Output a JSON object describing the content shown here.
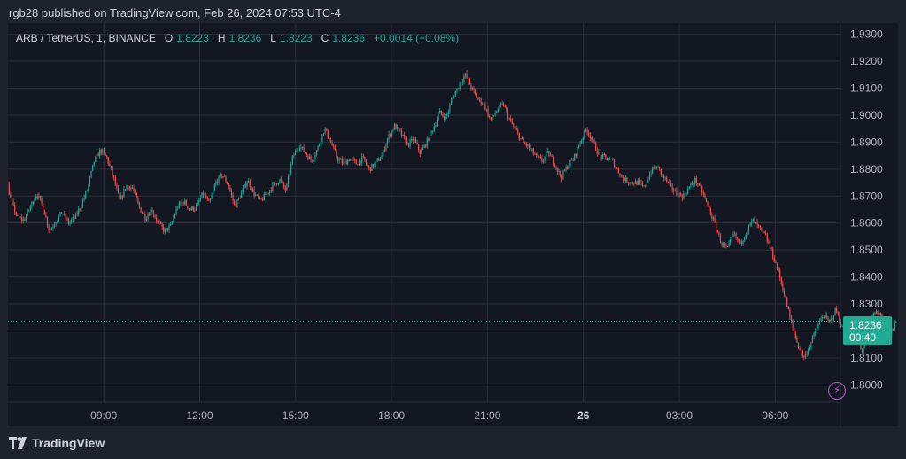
{
  "header": {
    "publisher_line": "rgb28 published on TradingView.com, Feb 26, 2024 07:53 UTC-4"
  },
  "legend": {
    "symbol": "ARB / TetherUS, 1, BINANCE",
    "o_label": "O",
    "o_value": "1.8223",
    "h_label": "H",
    "h_value": "1.8236",
    "l_label": "L",
    "l_value": "1.8223",
    "c_label": "C",
    "c_value": "1.8236",
    "change": "+0.0014 (+0.08%)"
  },
  "price_badge": {
    "price": "1.8236",
    "countdown": "00:40"
  },
  "footer": {
    "brand": "TradingView"
  },
  "colors": {
    "up": "#26a69a",
    "down": "#ef5350",
    "background": "#131722",
    "grid": "#2a2e39",
    "axis_text": "#b2b5be"
  },
  "chart_data": {
    "type": "candlestick",
    "interval": "1 minute",
    "ylim": [
      1.7975,
      1.9325
    ],
    "y_ticks": [
      "1.9300",
      "1.9200",
      "1.9100",
      "1.9000",
      "1.8900",
      "1.8800",
      "1.8700",
      "1.8600",
      "1.8500",
      "1.8400",
      "1.8300",
      "1.8200",
      "1.8100",
      "1.8000"
    ],
    "x_ticks": [
      {
        "label": "09:00",
        "hours": 2
      },
      {
        "label": "12:00",
        "hours": 5
      },
      {
        "label": "15:00",
        "hours": 8
      },
      {
        "label": "18:00",
        "hours": 11
      },
      {
        "label": "21:00",
        "hours": 14
      },
      {
        "label": "26",
        "hours": 17,
        "bold": true
      },
      {
        "label": "03:00",
        "hours": 20
      },
      {
        "label": "06:00",
        "hours": 23
      }
    ],
    "last_price": 1.8236,
    "grid": true,
    "price_path": [
      [
        -3.0,
        1.853
      ],
      [
        -2.85,
        1.855
      ],
      [
        -2.7,
        1.851
      ],
      [
        -2.5,
        1.849
      ],
      [
        -2.3,
        1.852
      ],
      [
        -2.1,
        1.849
      ],
      [
        -1.9,
        1.853
      ],
      [
        -1.7,
        1.857
      ],
      [
        -1.5,
        1.866
      ],
      [
        -1.3,
        1.876
      ],
      [
        -1.1,
        1.879
      ],
      [
        -0.9,
        1.868
      ],
      [
        -0.7,
        1.862
      ],
      [
        -0.5,
        1.861
      ],
      [
        -0.3,
        1.866
      ],
      [
        -0.1,
        1.871
      ],
      [
        0.1,
        1.866
      ],
      [
        0.3,
        1.857
      ],
      [
        0.5,
        1.861
      ],
      [
        0.7,
        1.864
      ],
      [
        0.9,
        1.86
      ],
      [
        1.1,
        1.862
      ],
      [
        1.3,
        1.867
      ],
      [
        1.5,
        1.873
      ],
      [
        1.7,
        1.883
      ],
      [
        1.9,
        1.887
      ],
      [
        2.1,
        1.884
      ],
      [
        2.3,
        1.877
      ],
      [
        2.5,
        1.868
      ],
      [
        2.7,
        1.874
      ],
      [
        2.9,
        1.873
      ],
      [
        3.1,
        1.866
      ],
      [
        3.3,
        1.862
      ],
      [
        3.5,
        1.865
      ],
      [
        3.7,
        1.86
      ],
      [
        3.9,
        1.857
      ],
      [
        4.1,
        1.859
      ],
      [
        4.3,
        1.866
      ],
      [
        4.5,
        1.868
      ],
      [
        4.7,
        1.865
      ],
      [
        4.9,
        1.866
      ],
      [
        5.1,
        1.871
      ],
      [
        5.3,
        1.867
      ],
      [
        5.5,
        1.875
      ],
      [
        5.7,
        1.878
      ],
      [
        5.9,
        1.874
      ],
      [
        6.1,
        1.866
      ],
      [
        6.3,
        1.871
      ],
      [
        6.5,
        1.876
      ],
      [
        6.7,
        1.871
      ],
      [
        6.9,
        1.868
      ],
      [
        7.1,
        1.871
      ],
      [
        7.3,
        1.874
      ],
      [
        7.5,
        1.876
      ],
      [
        7.7,
        1.872
      ],
      [
        7.9,
        1.884
      ],
      [
        8.1,
        1.889
      ],
      [
        8.3,
        1.886
      ],
      [
        8.5,
        1.883
      ],
      [
        8.7,
        1.888
      ],
      [
        8.9,
        1.895
      ],
      [
        9.1,
        1.89
      ],
      [
        9.3,
        1.884
      ],
      [
        9.5,
        1.882
      ],
      [
        9.7,
        1.884
      ],
      [
        9.9,
        1.882
      ],
      [
        10.1,
        1.884
      ],
      [
        10.3,
        1.88
      ],
      [
        10.5,
        1.882
      ],
      [
        10.7,
        1.885
      ],
      [
        10.9,
        1.892
      ],
      [
        11.1,
        1.896
      ],
      [
        11.3,
        1.893
      ],
      [
        11.5,
        1.889
      ],
      [
        11.7,
        1.891
      ],
      [
        11.9,
        1.886
      ],
      [
        12.1,
        1.89
      ],
      [
        12.3,
        1.895
      ],
      [
        12.5,
        1.901
      ],
      [
        12.7,
        1.899
      ],
      [
        12.9,
        1.906
      ],
      [
        13.1,
        1.911
      ],
      [
        13.3,
        1.915
      ],
      [
        13.5,
        1.91
      ],
      [
        13.7,
        1.906
      ],
      [
        13.9,
        1.904
      ],
      [
        14.1,
        1.898
      ],
      [
        14.3,
        1.902
      ],
      [
        14.5,
        1.904
      ],
      [
        14.7,
        1.898
      ],
      [
        14.9,
        1.894
      ],
      [
        15.1,
        1.89
      ],
      [
        15.3,
        1.888
      ],
      [
        15.5,
        1.885
      ],
      [
        15.7,
        1.883
      ],
      [
        15.9,
        1.886
      ],
      [
        16.1,
        1.882
      ],
      [
        16.3,
        1.877
      ],
      [
        16.5,
        1.881
      ],
      [
        16.7,
        1.884
      ],
      [
        16.9,
        1.89
      ],
      [
        17.1,
        1.895
      ],
      [
        17.3,
        1.89
      ],
      [
        17.5,
        1.885
      ],
      [
        17.7,
        1.884
      ],
      [
        17.9,
        1.883
      ],
      [
        18.1,
        1.879
      ],
      [
        18.3,
        1.876
      ],
      [
        18.5,
        1.875
      ],
      [
        18.7,
        1.875
      ],
      [
        18.9,
        1.873
      ],
      [
        19.1,
        1.879
      ],
      [
        19.3,
        1.881
      ],
      [
        19.5,
        1.877
      ],
      [
        19.7,
        1.874
      ],
      [
        19.9,
        1.871
      ],
      [
        20.1,
        1.87
      ],
      [
        20.3,
        1.873
      ],
      [
        20.5,
        1.876
      ],
      [
        20.7,
        1.872
      ],
      [
        20.9,
        1.866
      ],
      [
        21.1,
        1.86
      ],
      [
        21.3,
        1.853
      ],
      [
        21.5,
        1.85
      ],
      [
        21.7,
        1.856
      ],
      [
        21.9,
        1.852
      ],
      [
        22.1,
        1.857
      ],
      [
        22.3,
        1.861
      ],
      [
        22.5,
        1.858
      ],
      [
        22.7,
        1.855
      ],
      [
        22.9,
        1.849
      ],
      [
        23.1,
        1.842
      ],
      [
        23.3,
        1.833
      ],
      [
        23.5,
        1.823
      ],
      [
        23.7,
        1.815
      ],
      [
        23.9,
        1.81
      ],
      [
        24.1,
        1.815
      ],
      [
        24.3,
        1.821
      ],
      [
        24.5,
        1.826
      ],
      [
        24.7,
        1.823
      ],
      [
        24.9,
        1.828
      ],
      [
        25.1,
        1.821
      ],
      [
        25.3,
        1.818
      ],
      [
        25.5,
        1.822
      ],
      [
        25.7,
        1.812
      ],
      [
        25.9,
        1.82
      ],
      [
        26.1,
        1.827
      ],
      [
        26.3,
        1.826
      ],
      [
        26.5,
        1.818
      ],
      [
        26.7,
        1.821
      ],
      [
        26.8,
        1.8236
      ]
    ]
  }
}
